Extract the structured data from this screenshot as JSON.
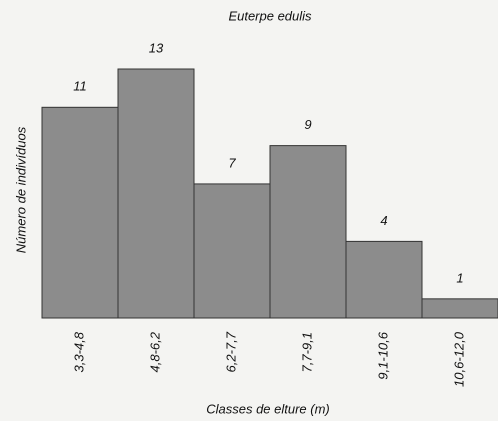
{
  "chart_data": {
    "type": "bar",
    "title": "Euterpe edulis",
    "x_label": "Classes de elture (m)",
    "y_label": "Número de indivíduos",
    "categories": [
      "3,3-4,8",
      "4,8-6,2",
      "6,2-7,7",
      "7,7-9,1",
      "9,1-10,6",
      "10,6-12,0"
    ],
    "values": [
      11,
      13,
      7,
      9,
      4,
      1
    ],
    "color": "#8c8c8c"
  }
}
